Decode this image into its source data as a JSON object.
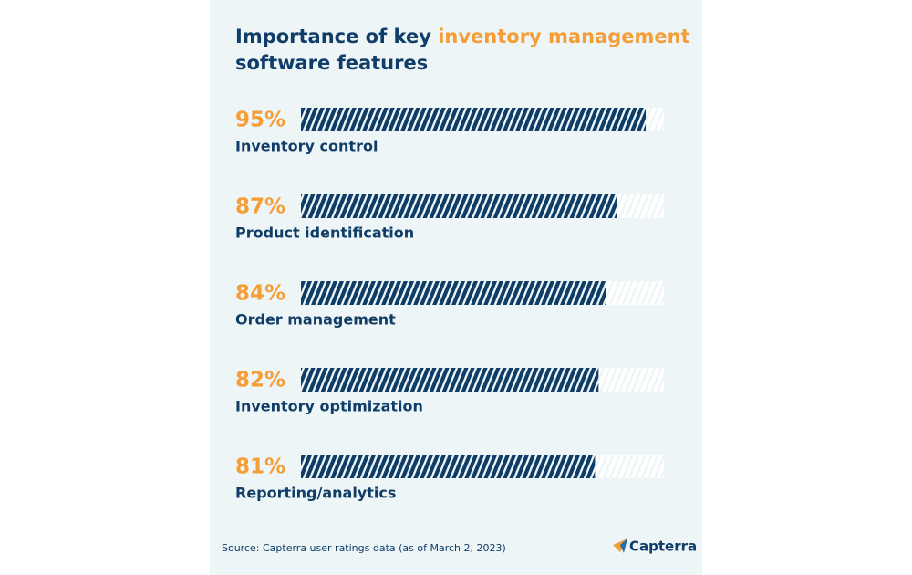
{
  "chart_data": {
    "type": "hbar",
    "title": [
      "Importance of key",
      "inventory management",
      "software features"
    ],
    "categories": [
      "Inventory control",
      "Product identification",
      "Order management",
      "Inventory optimization",
      "Reporting/analytics"
    ],
    "values": [
      95,
      87,
      84,
      82,
      81
    ],
    "value_labels": [
      "95%",
      "87%",
      "84%",
      "82%",
      "81%"
    ],
    "xlim": [
      0,
      100
    ],
    "color": "#0f3d68",
    "label_color": "#f59e37",
    "source": "Source: Capterra user ratings data (as of March 2, 2023)",
    "brand": "Capterra"
  }
}
